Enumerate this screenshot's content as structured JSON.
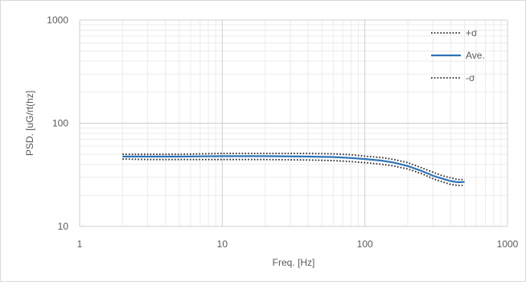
{
  "chart_data": {
    "type": "line",
    "title": "",
    "xlabel": "Freq. [Hz]",
    "ylabel": "PSD. [uG/rt(hz]",
    "x_scale": "log",
    "y_scale": "log",
    "xlim": [
      1,
      1000
    ],
    "ylim": [
      10,
      1000
    ],
    "x_ticks": [
      "1",
      "10",
      "100",
      "1000"
    ],
    "y_ticks": [
      "1000",
      "100",
      "10"
    ],
    "grid": "major-and-minor",
    "legend_position": "top-right",
    "series": [
      {
        "name": "+σ",
        "style": "dotted",
        "color": "#262626",
        "x": [
          2,
          3,
          5,
          10,
          20,
          40,
          60,
          80,
          100,
          130,
          160,
          200,
          250,
          300,
          350,
          400,
          450,
          500
        ],
        "y": [
          50,
          50,
          50,
          51,
          51,
          51,
          50.5,
          49.5,
          48,
          46.5,
          44.5,
          41.5,
          37,
          33.5,
          31,
          29.5,
          28.5,
          28.5
        ]
      },
      {
        "name": "Ave.",
        "style": "solid",
        "color": "#2e75b6",
        "x": [
          2,
          3,
          5,
          10,
          20,
          40,
          60,
          80,
          100,
          130,
          160,
          200,
          250,
          300,
          350,
          400,
          450,
          500
        ],
        "y": [
          47.5,
          47.5,
          47.5,
          48,
          48,
          47.5,
          47,
          46,
          45,
          43.5,
          41.5,
          38.5,
          34.5,
          31,
          29,
          27.5,
          26.8,
          27
        ]
      },
      {
        "name": "-σ",
        "style": "dotted",
        "color": "#262626",
        "x": [
          2,
          3,
          5,
          10,
          20,
          40,
          60,
          80,
          100,
          130,
          160,
          200,
          250,
          300,
          350,
          400,
          450,
          500
        ],
        "y": [
          45,
          44.5,
          44.5,
          44.5,
          44.5,
          44,
          43.5,
          42.5,
          41.5,
          40,
          38.5,
          36,
          32.5,
          29,
          27,
          25.5,
          25,
          25
        ]
      }
    ]
  }
}
